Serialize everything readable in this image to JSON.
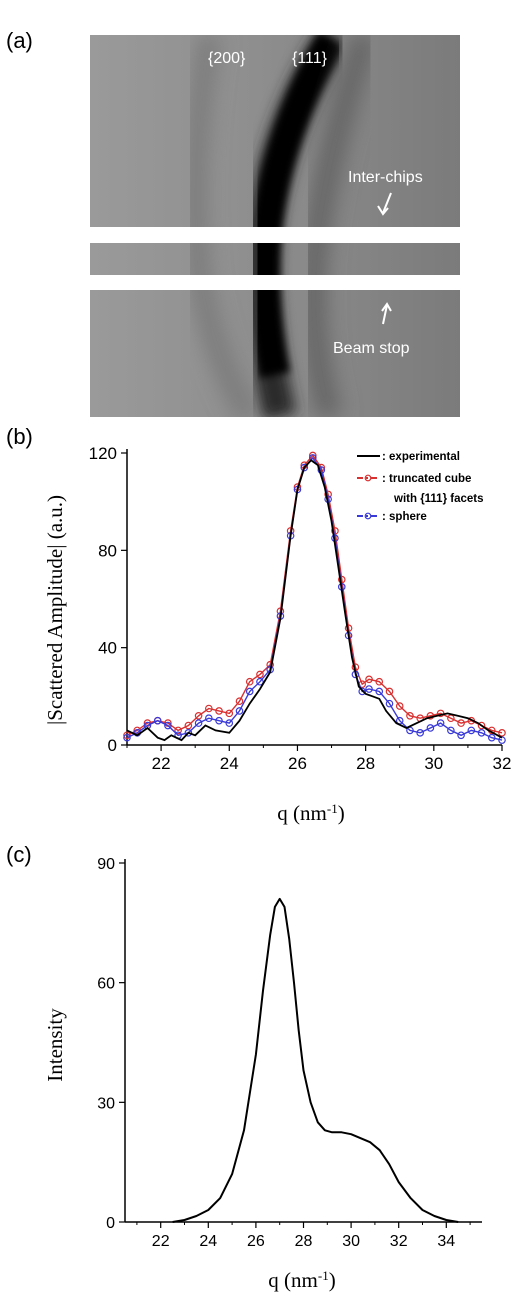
{
  "panels": {
    "a_label": "(a)",
    "b_label": "(b)",
    "c_label": "(c)"
  },
  "detector_image": {
    "labels": [
      "{200}",
      "{111}"
    ],
    "annotations": [
      "Inter-chips",
      "Beam stop"
    ]
  },
  "chart_data": [
    {
      "type": "line",
      "xlabel": "q (nm",
      "xlabel_sup": "-1",
      "xlabel_tail": ")",
      "ylabel": "|Scattered Amplitude| (a.u.)",
      "xlim": [
        21,
        32
      ],
      "ylim": [
        0,
        120
      ],
      "xticks": [
        22,
        24,
        26,
        28,
        30,
        32
      ],
      "yticks": [
        0,
        40,
        80,
        120
      ],
      "legend_position": "top-right",
      "series": [
        {
          "name": ": experimental",
          "color": "#000000",
          "x": [
            21.0,
            21.3,
            21.6,
            21.9,
            22.1,
            22.3,
            22.6,
            22.8,
            23.0,
            23.3,
            23.6,
            24.0,
            24.3,
            24.6,
            24.9,
            25.2,
            25.5,
            25.8,
            26.0,
            26.2,
            26.4,
            26.6,
            26.8,
            27.0,
            27.2,
            27.4,
            27.6,
            27.8,
            28.0,
            28.2,
            28.4,
            28.6,
            28.9,
            29.2,
            29.5,
            29.8,
            30.1,
            30.4,
            30.7,
            31.0,
            31.3,
            31.6,
            32.0
          ],
          "values": [
            6,
            4,
            7,
            3,
            2,
            4,
            2,
            5,
            4,
            8,
            6,
            5,
            10,
            17,
            23,
            30,
            52,
            86,
            105,
            114,
            117,
            115,
            106,
            92,
            73,
            54,
            36,
            24,
            21,
            20,
            19,
            14,
            9,
            7,
            9,
            11,
            12,
            13,
            12,
            11,
            9,
            6,
            3
          ]
        },
        {
          "name": ": truncated cube",
          "name_line2": "with {111} facets",
          "color": "#d93030",
          "x": [
            21.0,
            21.3,
            21.6,
            21.9,
            22.2,
            22.5,
            22.8,
            23.1,
            23.4,
            23.7,
            24.0,
            24.3,
            24.6,
            24.9,
            25.2,
            25.5,
            25.8,
            26.0,
            26.2,
            26.45,
            26.7,
            26.9,
            27.1,
            27.3,
            27.5,
            27.7,
            27.9,
            28.1,
            28.4,
            28.7,
            29.0,
            29.3,
            29.6,
            29.9,
            30.2,
            30.5,
            30.8,
            31.1,
            31.4,
            31.7,
            32.0
          ],
          "values": [
            4,
            6,
            9,
            10,
            9,
            6,
            8,
            12,
            15,
            14,
            13,
            18,
            26,
            29,
            33,
            55,
            88,
            106,
            115,
            119,
            114,
            103,
            88,
            68,
            48,
            32,
            25,
            27,
            26,
            22,
            16,
            12,
            11,
            12,
            13,
            11,
            9,
            10,
            8,
            6,
            5
          ]
        },
        {
          "name": ": sphere",
          "color": "#3a3ad8",
          "x": [
            21.0,
            21.3,
            21.6,
            21.9,
            22.2,
            22.5,
            22.8,
            23.1,
            23.4,
            23.7,
            24.0,
            24.3,
            24.6,
            24.9,
            25.2,
            25.5,
            25.8,
            26.0,
            26.2,
            26.45,
            26.7,
            26.9,
            27.1,
            27.3,
            27.5,
            27.7,
            27.9,
            28.1,
            28.4,
            28.7,
            29.0,
            29.3,
            29.6,
            29.9,
            30.2,
            30.5,
            30.8,
            31.1,
            31.4,
            31.7,
            32.0
          ],
          "values": [
            3,
            5,
            8,
            10,
            8,
            4,
            5,
            9,
            11,
            10,
            9,
            14,
            22,
            26,
            31,
            53,
            86,
            105,
            114,
            118,
            113,
            101,
            85,
            65,
            45,
            29,
            22,
            23,
            22,
            17,
            10,
            6,
            5,
            7,
            9,
            6,
            4,
            6,
            5,
            3,
            2
          ]
        }
      ]
    },
    {
      "type": "line",
      "xlabel": "q (nm",
      "xlabel_sup": "-1",
      "xlabel_tail": ")",
      "ylabel": "Intensity",
      "xlim": [
        20.5,
        35.5
      ],
      "ylim": [
        0,
        90
      ],
      "xticks": [
        22,
        24,
        26,
        28,
        30,
        32,
        34
      ],
      "yticks": [
        0,
        30,
        60,
        90
      ],
      "series": [
        {
          "color": "#000000",
          "x": [
            22.5,
            23.0,
            23.5,
            24.0,
            24.5,
            25.0,
            25.5,
            26.0,
            26.3,
            26.6,
            26.8,
            27.0,
            27.2,
            27.4,
            27.6,
            27.8,
            28.0,
            28.3,
            28.6,
            28.9,
            29.2,
            29.6,
            30.0,
            30.4,
            30.8,
            31.2,
            31.6,
            32.0,
            32.5,
            33.0,
            33.5,
            34.0,
            34.5
          ],
          "values": [
            0,
            0.5,
            1.5,
            3,
            6,
            12,
            23,
            42,
            58,
            72,
            79,
            81,
            79,
            71,
            60,
            48,
            38,
            30,
            25,
            23,
            22.5,
            22.5,
            22,
            21,
            20,
            18,
            14.5,
            10,
            6,
            3,
            1.5,
            0.5,
            0
          ]
        }
      ]
    }
  ]
}
